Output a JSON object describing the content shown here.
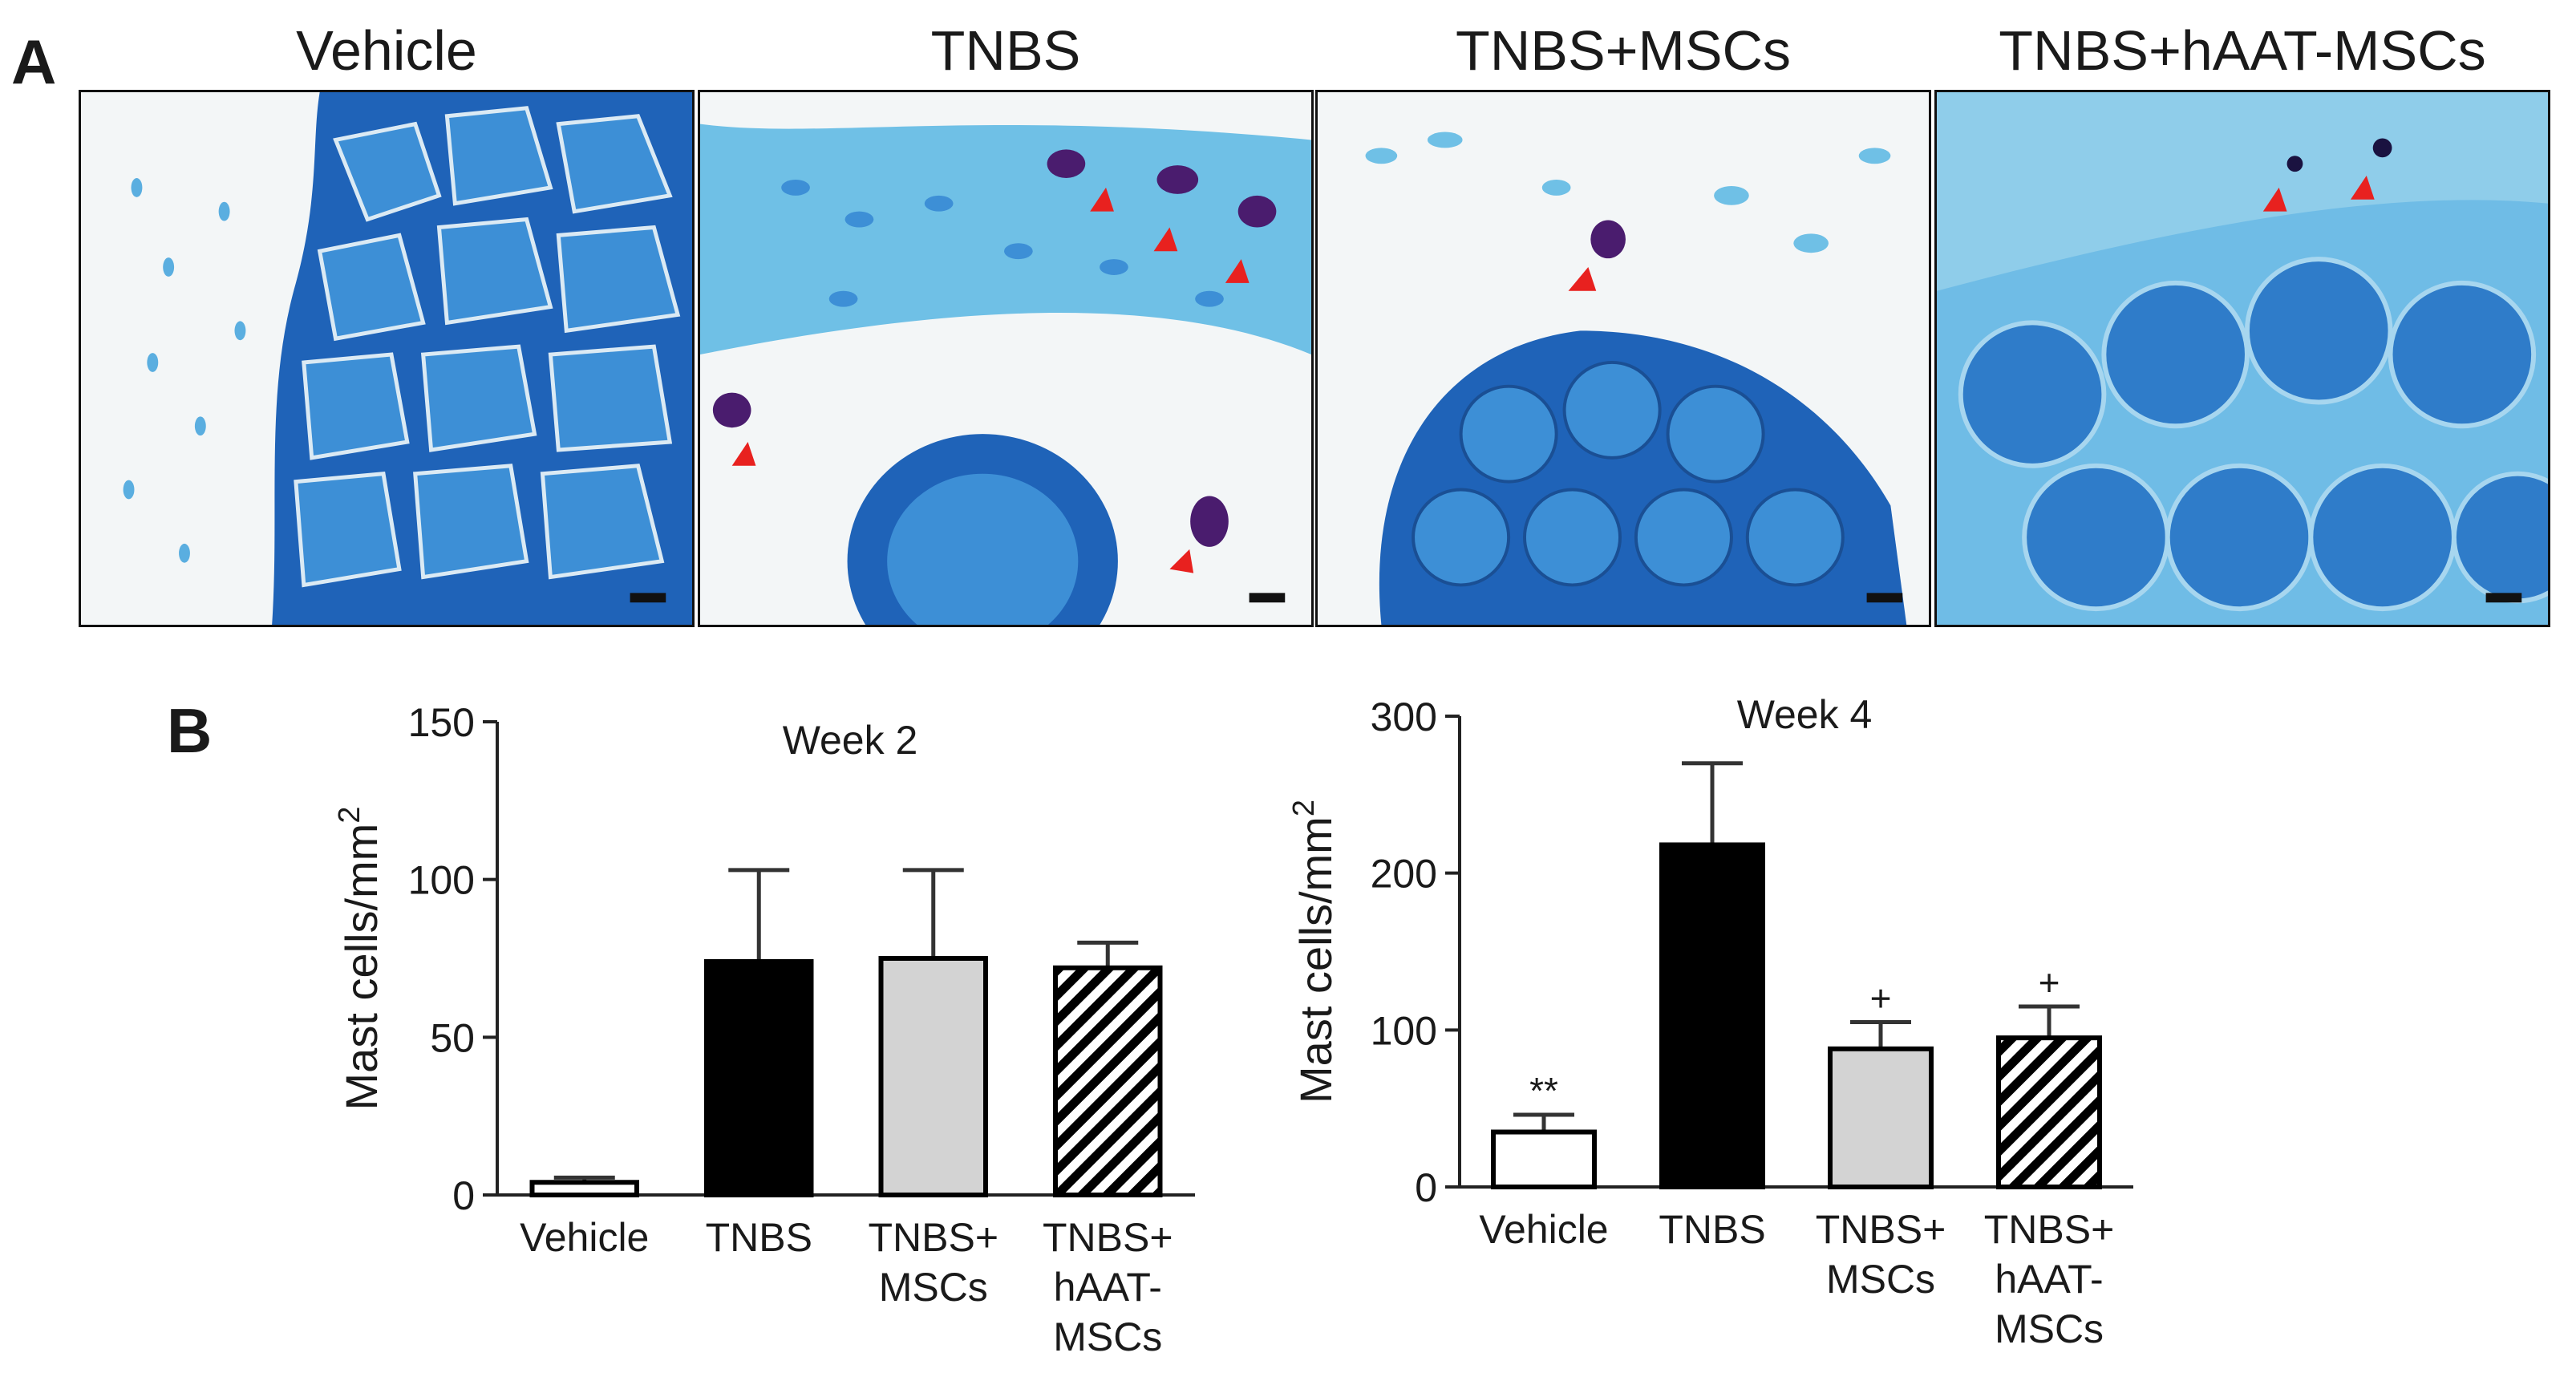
{
  "panel_labels": {
    "a": "A",
    "b": "B"
  },
  "image_titles": [
    "Vehicle",
    "TNBS",
    "TNBS+MSCs",
    "TNBS+hAAT-MSCs"
  ],
  "colors": {
    "tissue_dark": "#1f63b8",
    "tissue_mid": "#3d8fd6",
    "tissue_light": "#9fd2ec",
    "background": "#f3f6f7",
    "mast_cell": "#4a1c6e",
    "arrow": "#e8211f",
    "scale_bar": "#111111"
  },
  "chart_data": [
    {
      "type": "bar",
      "title": "Week 2",
      "ylabel": "Mast cells/mm",
      "ylabel_superscript": "2",
      "xlabel": "",
      "ylim": [
        0,
        150
      ],
      "yticks": [
        0,
        50,
        100,
        150
      ],
      "categories": [
        [
          "Vehicle"
        ],
        [
          "TNBS"
        ],
        [
          "TNBS+",
          "MSCs"
        ],
        [
          "TNBS+",
          "hAAT-",
          "MSCs"
        ]
      ],
      "values": [
        4,
        74,
        75,
        72
      ],
      "errors": [
        1.5,
        29,
        28,
        8
      ],
      "fills": [
        "white",
        "black",
        "grey",
        "hatched"
      ],
      "significance": [
        "",
        "",
        "",
        ""
      ]
    },
    {
      "type": "bar",
      "title": "Week 4",
      "ylabel": "Mast cells/mm",
      "ylabel_superscript": "2",
      "xlabel": "",
      "ylim": [
        0,
        300
      ],
      "yticks": [
        0,
        100,
        200,
        300
      ],
      "categories": [
        [
          "Vehicle"
        ],
        [
          "TNBS"
        ],
        [
          "TNBS+",
          "MSCs"
        ],
        [
          "TNBS+",
          "hAAT-",
          "MSCs"
        ]
      ],
      "values": [
        35,
        218,
        88,
        95
      ],
      "errors": [
        11,
        52,
        17,
        20
      ],
      "fills": [
        "white",
        "black",
        "grey",
        "hatched"
      ],
      "significance": [
        "**",
        "",
        "+",
        "+"
      ]
    }
  ]
}
